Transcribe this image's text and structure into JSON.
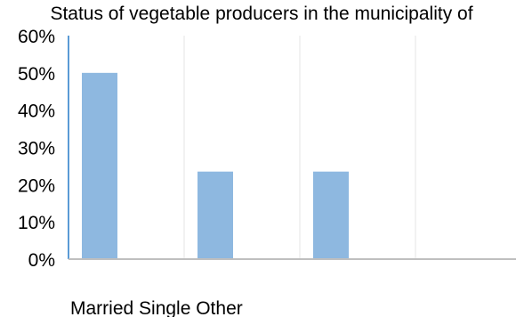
{
  "chart_data": {
    "type": "bar",
    "title": "Status of vegetable producers in the municipality of",
    "xlabel": "",
    "ylabel": "",
    "categories": [
      "Married",
      "Single",
      "Other"
    ],
    "category_label_text": "Married Single Other",
    "values": [
      50,
      23.5,
      23.5
    ],
    "ylim": [
      0,
      60
    ],
    "y_ticks": [
      0,
      10,
      20,
      30,
      40,
      50,
      60
    ],
    "y_tick_labels": [
      "0%",
      "10%",
      "20%",
      "30%",
      "40%",
      "50%",
      "60%"
    ],
    "grid": "vertical",
    "legend": "none",
    "bar_color": "#8eb8e0",
    "axis_color": "#5b9bd5",
    "baseline_color": "#bfbfbf",
    "grid_color": "#e6e6e6"
  }
}
